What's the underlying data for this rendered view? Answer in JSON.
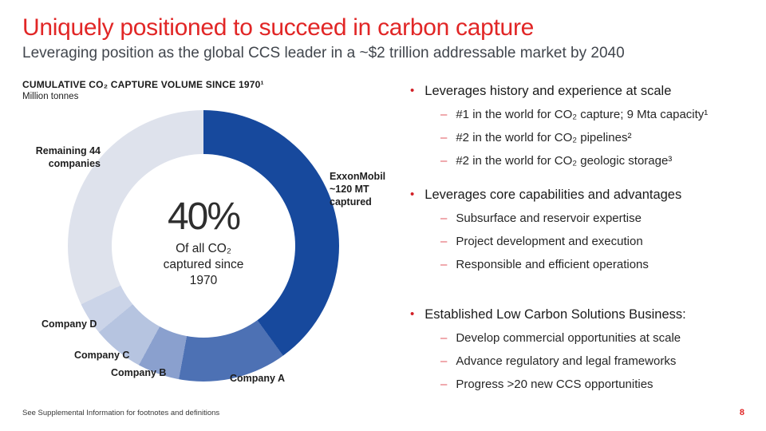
{
  "slide": {
    "title": "Uniquely positioned to succeed in carbon capture",
    "subtitle": "Leveraging position as the global CCS leader in a ~$2 trillion addressable market by 2040",
    "footer": "See Supplemental Information for footnotes and definitions",
    "page_number": "8"
  },
  "chart": {
    "heading": "CUMULATIVE CO₂ CAPTURE VOLUME SINCE 1970¹",
    "units": "Million tonnes",
    "center_value": "40%",
    "center_caption": "Of all CO₂\ncaptured since\n1970",
    "labels": {
      "remaining": "Remaining 44\ncompanies",
      "exxon": "ExxonMobil\n~120 MT\ncaptured",
      "company_a": "Company A",
      "company_b": "Company B",
      "company_c": "Company C",
      "company_d": "Company D"
    }
  },
  "chart_data": {
    "type": "pie",
    "donut": true,
    "title": "Cumulative CO₂ capture volume since 1970",
    "units": "Million tonnes",
    "start_angle_deg": 0,
    "direction": "clockwise",
    "center_label": "40% of all CO₂ captured since 1970",
    "segments": [
      {
        "label": "ExxonMobil (~120 MT captured)",
        "pct": 40.0,
        "color": "#17499d"
      },
      {
        "label": "Company A",
        "pct": 12.9,
        "color": "#4d71b4"
      },
      {
        "label": "Company B",
        "pct": 5.0,
        "color": "#8aa0ce"
      },
      {
        "label": "Company C",
        "pct": 6.1,
        "color": "#b6c4e0"
      },
      {
        "label": "Company D",
        "pct": 3.9,
        "color": "#cbd4e8"
      },
      {
        "label": "Remaining 44 companies",
        "pct": 32.1,
        "color": "#dee2ec"
      }
    ]
  },
  "bullets": {
    "sections": [
      {
        "title": "Leverages history and experience at scale",
        "items": [
          "#1 in the world for CO₂ capture; 9 Mta capacity¹",
          "#2 in the world for CO₂ pipelines²",
          "#2 in the world for CO₂ geologic storage³"
        ]
      },
      {
        "title": "Leverages core capabilities and advantages",
        "items": [
          "Subsurface and reservoir expertise",
          "Project development and execution",
          "Responsible and efficient operations"
        ]
      },
      {
        "title": "Established Low Carbon Solutions Business:",
        "items": [
          "Develop commercial opportunities at scale",
          "Advance regulatory and legal frameworks",
          "Progress >20 new CCS opportunities"
        ]
      }
    ]
  },
  "colors": {
    "accent_red": "#e12626",
    "exxon_blue": "#17499d",
    "subtitle_gray": "#41464d",
    "background": "#ffffff"
  }
}
